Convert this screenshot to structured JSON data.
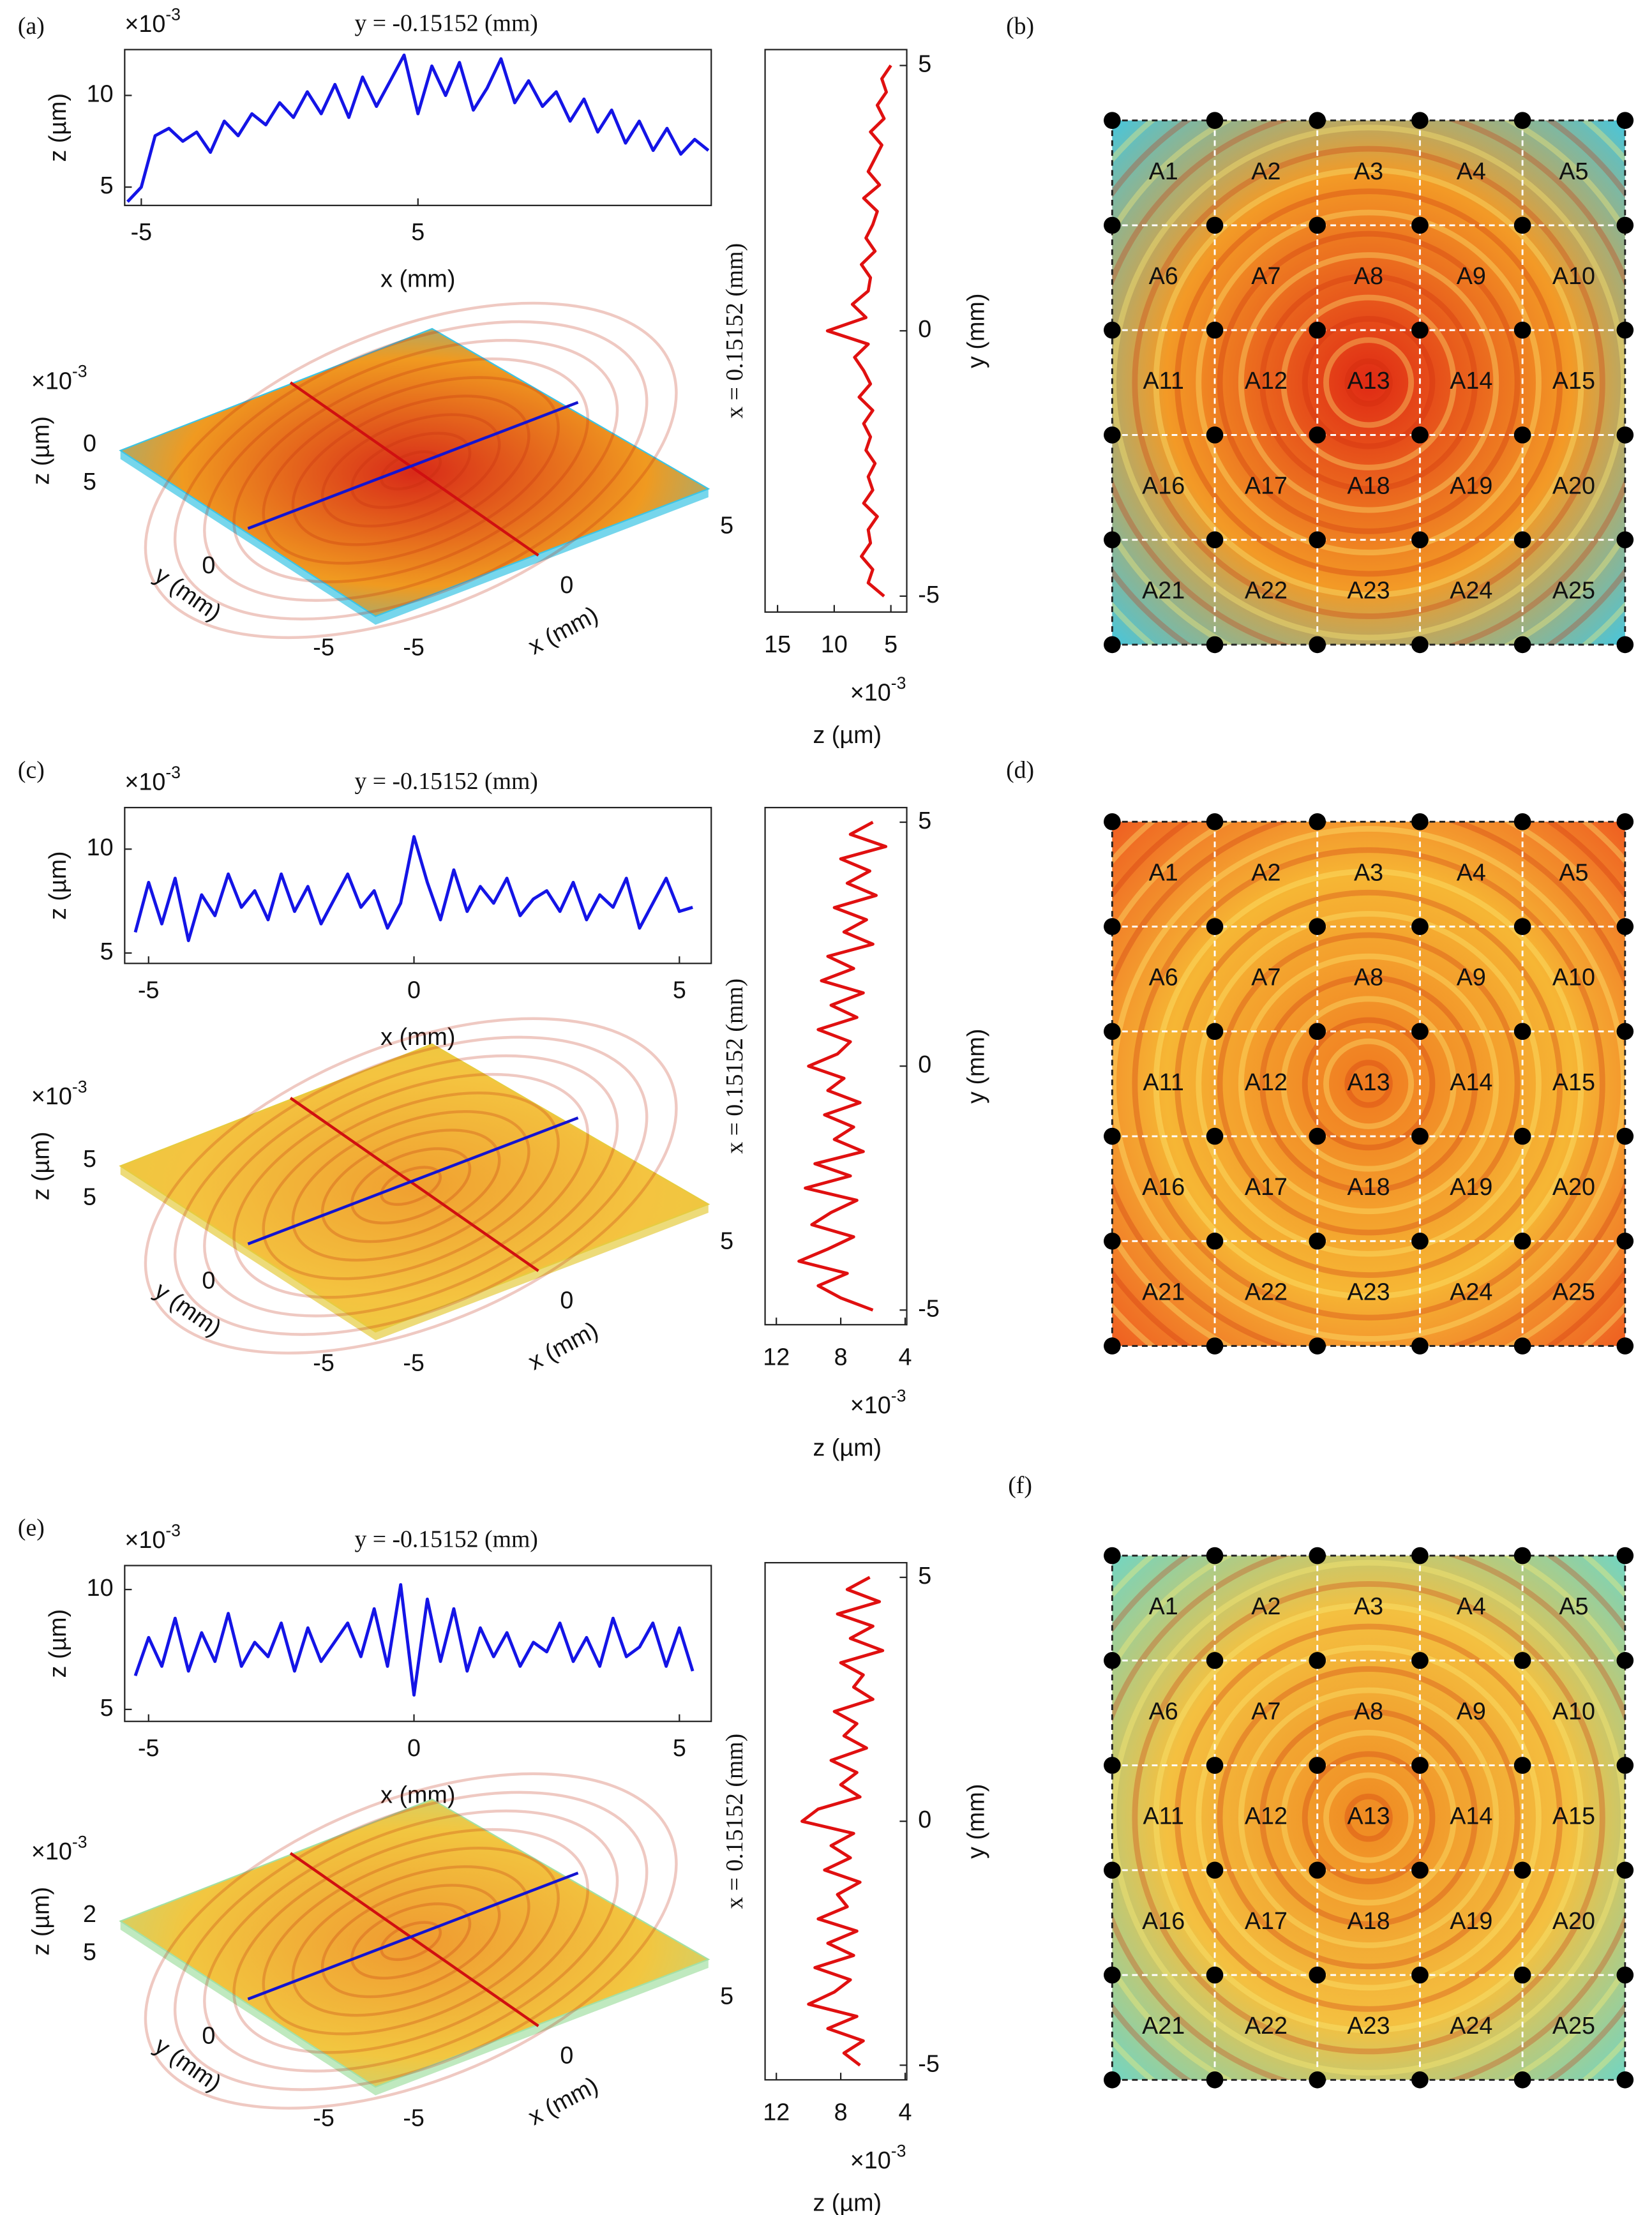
{
  "panel_labels": [
    "(a)",
    "(b)",
    "(c)",
    "(d)",
    "(e)",
    "(f)"
  ],
  "chart_data": [
    {
      "type": "line",
      "orientation": "horizontal",
      "title": "y = -0.15152 (mm)",
      "multiplier": {
        "base": "×10",
        "exponent": "-3"
      },
      "xlabel": "x (mm)",
      "ylabel": "z (µm)",
      "color": "#1414e6",
      "x": [
        -5.5,
        -5,
        -4.5,
        -4,
        -3.5,
        -3,
        -2.5,
        -2,
        -1.5,
        -1,
        -0.5,
        0,
        0.5,
        1,
        1.5,
        2,
        2.5,
        3,
        3.5,
        4,
        4.5,
        5,
        5.5,
        6,
        6.5,
        7,
        7.5,
        8,
        8.5,
        9,
        9.5,
        10,
        10.5,
        11,
        11.5,
        12,
        12.5,
        13,
        13.5,
        14,
        14.5,
        15,
        15.5
      ],
      "values": [
        4.2,
        5.0,
        7.8,
        8.2,
        7.5,
        8.0,
        6.9,
        8.6,
        7.8,
        9.0,
        8.4,
        9.6,
        8.8,
        10.2,
        9.0,
        10.6,
        8.8,
        11.0,
        9.4,
        10.8,
        12.2,
        9.0,
        11.6,
        10.0,
        11.8,
        9.2,
        10.4,
        12.0,
        9.6,
        10.8,
        9.4,
        10.2,
        8.6,
        9.8,
        8.0,
        9.2,
        7.4,
        8.6,
        7.0,
        8.2,
        6.8,
        7.6,
        7.0
      ],
      "xlim": [
        -5.6,
        15.6
      ],
      "xticks": [
        -5,
        5
      ],
      "ylim": [
        4,
        12.5
      ],
      "yticks": [
        5,
        10
      ]
    },
    {
      "type": "surface",
      "multiplier": {
        "base": "×10",
        "exponent": "-3"
      },
      "zlabel": "z (µm)",
      "ylabel": "y (mm)",
      "xlabel": "x (mm)",
      "zticks": [
        0
      ],
      "yticks": [
        5,
        0,
        -5
      ],
      "xticks": [
        -5,
        0,
        5
      ],
      "colors": [
        "#d82a18",
        "#f09a20",
        "#3cc4e4"
      ]
    },
    {
      "type": "line",
      "orientation": "vertical",
      "ylabel": "x = 0.15152 (mm)",
      "y2label": "y (mm)",
      "xlabel": "z (µm)",
      "multiplier": {
        "base": "×10",
        "exponent": "-3"
      },
      "color": "#e01010",
      "y": [
        5,
        4.75,
        4.5,
        4.25,
        4,
        3.75,
        3.5,
        3.25,
        3,
        2.75,
        2.5,
        2.25,
        2,
        1.75,
        1.5,
        1.25,
        1,
        0.75,
        0.5,
        0.25,
        0,
        -0.25,
        -0.5,
        -0.75,
        -1,
        -1.25,
        -1.5,
        -1.75,
        -2,
        -2.25,
        -2.5,
        -2.75,
        -3,
        -3.25,
        -3.5,
        -3.75,
        -4,
        -4.25,
        -4.5,
        -4.75,
        -5
      ],
      "values": [
        5.0,
        5.8,
        5.4,
        6.2,
        5.6,
        6.8,
        5.8,
        6.4,
        7.0,
        6.0,
        7.4,
        6.2,
        6.6,
        7.2,
        6.4,
        7.6,
        6.8,
        7.0,
        8.4,
        7.2,
        10.6,
        7.0,
        8.2,
        7.4,
        6.8,
        7.8,
        6.6,
        7.4,
        6.8,
        7.2,
        6.4,
        7.0,
        6.6,
        7.4,
        6.2,
        7.0,
        6.8,
        7.6,
        6.6,
        7.0,
        5.6
      ],
      "xlim": [
        3.6,
        16.1
      ],
      "x_reversed": true,
      "xticks": [
        15,
        10,
        5
      ],
      "ylim": [
        -5.3,
        5.3
      ],
      "yticks": [
        5,
        0,
        -5
      ]
    },
    {
      "type": "heatmap",
      "cells": [
        "A1",
        "A2",
        "A3",
        "A4",
        "A5",
        "A6",
        "A7",
        "A8",
        "A9",
        "A10",
        "A11",
        "A12",
        "A13",
        "A14",
        "A15",
        "A16",
        "A17",
        "A18",
        "A19",
        "A20",
        "A21",
        "A22",
        "A23",
        "A24",
        "A25"
      ],
      "colors": [
        "#e02a14",
        "#f39a26",
        "#40c8e4"
      ]
    },
    {
      "type": "line",
      "orientation": "horizontal",
      "title": "y = -0.15152 (mm)",
      "multiplier": {
        "base": "×10",
        "exponent": "-3"
      },
      "xlabel": "x (mm)",
      "ylabel": "z (µm)",
      "color": "#1414e6",
      "x": [
        -5.25,
        -5,
        -4.75,
        -4.5,
        -4.25,
        -4,
        -3.75,
        -3.5,
        -3.25,
        -3,
        -2.75,
        -2.5,
        -2.25,
        -2,
        -1.75,
        -1.5,
        -1.25,
        -1,
        -0.75,
        -0.5,
        -0.25,
        0,
        0.25,
        0.5,
        0.75,
        1,
        1.25,
        1.5,
        1.75,
        2,
        2.25,
        2.5,
        2.75,
        3,
        3.25,
        3.5,
        3.75,
        4,
        4.25,
        4.5,
        4.75,
        5,
        5.25
      ],
      "values": [
        6.0,
        8.4,
        6.4,
        8.6,
        5.6,
        7.8,
        6.8,
        8.8,
        7.2,
        8.0,
        6.6,
        8.8,
        7.0,
        8.2,
        6.4,
        7.6,
        8.8,
        7.2,
        8.0,
        6.2,
        7.4,
        10.6,
        8.4,
        6.6,
        9.0,
        7.0,
        8.2,
        7.4,
        8.6,
        6.8,
        7.6,
        8.0,
        7.0,
        8.4,
        6.6,
        7.8,
        7.2,
        8.6,
        6.2,
        7.4,
        8.6,
        7.0,
        7.2
      ],
      "xlim": [
        -5.45,
        5.6
      ],
      "xticks": [
        -5,
        0,
        5
      ],
      "ylim": [
        4.5,
        12
      ],
      "yticks": [
        5,
        10
      ]
    },
    {
      "type": "surface",
      "multiplier": {
        "base": "×10",
        "exponent": "-3"
      },
      "zlabel": "z (µm)",
      "ylabel": "y (mm)",
      "xlabel": "x (mm)",
      "zticks": [
        5
      ],
      "yticks": [
        5,
        0,
        -5
      ],
      "xticks": [
        -5,
        0,
        5
      ],
      "colors": [
        "#f0a030",
        "#f4c440",
        "#e6cc40"
      ]
    },
    {
      "type": "line",
      "orientation": "vertical",
      "ylabel": "x = 0.15152 (mm)",
      "y2label": "y (mm)",
      "xlabel": "z (µm)",
      "multiplier": {
        "base": "×10",
        "exponent": "-3"
      },
      "color": "#e01010",
      "y": [
        5,
        4.75,
        4.5,
        4.25,
        4,
        3.75,
        3.5,
        3.25,
        3,
        2.75,
        2.5,
        2.25,
        2,
        1.75,
        1.5,
        1.25,
        1,
        0.75,
        0.5,
        0.25,
        0,
        -0.25,
        -0.5,
        -0.75,
        -1,
        -1.25,
        -1.5,
        -1.75,
        -2,
        -2.25,
        -2.5,
        -2.75,
        -3,
        -3.25,
        -3.5,
        -3.75,
        -4,
        -4.25,
        -4.5,
        -4.75,
        -5
      ],
      "values": [
        6.0,
        7.4,
        5.2,
        8.0,
        6.2,
        7.6,
        5.8,
        8.4,
        6.4,
        7.8,
        6.0,
        8.8,
        7.2,
        9.2,
        6.6,
        8.6,
        7.0,
        9.4,
        7.4,
        8.2,
        10.0,
        7.8,
        8.8,
        6.8,
        9.0,
        7.2,
        8.4,
        6.6,
        9.6,
        7.4,
        10.2,
        7.0,
        8.6,
        9.8,
        7.2,
        8.8,
        10.6,
        7.6,
        9.4,
        8.0,
        6.0
      ],
      "xlim": [
        3.9,
        12.7
      ],
      "x_reversed": true,
      "xticks": [
        12,
        8,
        4
      ],
      "ylim": [
        -5.3,
        5.3
      ],
      "yticks": [
        5,
        0,
        -5
      ]
    },
    {
      "type": "heatmap",
      "cells": [
        "A1",
        "A2",
        "A3",
        "A4",
        "A5",
        "A6",
        "A7",
        "A8",
        "A9",
        "A10",
        "A11",
        "A12",
        "A13",
        "A14",
        "A15",
        "A16",
        "A17",
        "A18",
        "A19",
        "A20",
        "A21",
        "A22",
        "A23",
        "A24",
        "A25"
      ],
      "colors": [
        "#f07a20",
        "#f6b634",
        "#ee5a20"
      ]
    },
    {
      "type": "line",
      "orientation": "horizontal",
      "title": "y = -0.15152 (mm)",
      "multiplier": {
        "base": "×10",
        "exponent": "-3"
      },
      "xlabel": "x (mm)",
      "ylabel": "z (µm)",
      "color": "#1414e6",
      "x": [
        -5.25,
        -5,
        -4.75,
        -4.5,
        -4.25,
        -4,
        -3.75,
        -3.5,
        -3.25,
        -3,
        -2.75,
        -2.5,
        -2.25,
        -2,
        -1.75,
        -1.5,
        -1.25,
        -1,
        -0.75,
        -0.5,
        -0.25,
        0,
        0.25,
        0.5,
        0.75,
        1,
        1.25,
        1.5,
        1.75,
        2,
        2.25,
        2.5,
        2.75,
        3,
        3.25,
        3.5,
        3.75,
        4,
        4.25,
        4.5,
        4.75,
        5,
        5.25
      ],
      "values": [
        6.4,
        8.0,
        6.8,
        8.8,
        6.6,
        8.2,
        7.0,
        9.0,
        6.8,
        7.8,
        7.2,
        8.6,
        6.6,
        8.4,
        7.0,
        7.8,
        8.6,
        7.2,
        9.2,
        6.8,
        10.2,
        5.6,
        9.6,
        7.0,
        9.2,
        6.6,
        8.4,
        7.2,
        8.2,
        6.8,
        7.8,
        7.4,
        8.6,
        7.0,
        8.0,
        6.8,
        8.8,
        7.2,
        7.6,
        8.6,
        6.8,
        8.4,
        6.6
      ],
      "xlim": [
        -5.45,
        5.6
      ],
      "xticks": [
        -5,
        0,
        5
      ],
      "ylim": [
        4.5,
        11
      ],
      "yticks": [
        5,
        10
      ]
    },
    {
      "type": "surface",
      "multiplier": {
        "base": "×10",
        "exponent": "-3"
      },
      "zlabel": "z (µm)",
      "ylabel": "y (mm)",
      "xlabel": "x (mm)",
      "zticks": [
        2
      ],
      "yticks": [
        5,
        0,
        -5
      ],
      "xticks": [
        -5,
        0,
        5
      ],
      "colors": [
        "#f09a30",
        "#f2c640",
        "#a4e0a4"
      ]
    },
    {
      "type": "line",
      "orientation": "vertical",
      "ylabel": "x = 0.15152 (mm)",
      "y2label": "y (mm)",
      "xlabel": "z (µm)",
      "multiplier": {
        "base": "×10",
        "exponent": "-3"
      },
      "color": "#e01010",
      "y": [
        5,
        4.75,
        4.5,
        4.25,
        4,
        3.75,
        3.5,
        3.25,
        3,
        2.75,
        2.5,
        2.25,
        2,
        1.75,
        1.5,
        1.25,
        1,
        0.75,
        0.5,
        0.25,
        0,
        -0.25,
        -0.5,
        -0.75,
        -1,
        -1.25,
        -1.5,
        -1.75,
        -2,
        -2.25,
        -2.5,
        -2.75,
        -3,
        -3.25,
        -3.5,
        -3.75,
        -4,
        -4.25,
        -4.5,
        -4.75,
        -5
      ],
      "values": [
        6.2,
        7.6,
        5.6,
        8.2,
        6.0,
        7.4,
        5.4,
        8.0,
        6.6,
        7.2,
        6.0,
        8.4,
        7.0,
        7.8,
        6.4,
        8.6,
        7.0,
        8.0,
        6.8,
        9.4,
        10.4,
        7.2,
        8.6,
        7.4,
        9.0,
        6.8,
        8.2,
        7.6,
        9.4,
        7.0,
        8.8,
        7.2,
        9.6,
        7.4,
        8.4,
        10.0,
        7.0,
        8.8,
        6.6,
        7.8,
        6.8
      ],
      "xlim": [
        3.9,
        12.7
      ],
      "x_reversed": true,
      "xticks": [
        12,
        8,
        4
      ],
      "ylim": [
        -5.3,
        5.3
      ],
      "yticks": [
        5,
        0,
        -5
      ]
    },
    {
      "type": "heatmap",
      "cells": [
        "A1",
        "A2",
        "A3",
        "A4",
        "A5",
        "A6",
        "A7",
        "A8",
        "A9",
        "A10",
        "A11",
        "A12",
        "A13",
        "A14",
        "A15",
        "A16",
        "A17",
        "A18",
        "A19",
        "A20",
        "A21",
        "A22",
        "A23",
        "A24",
        "A25"
      ],
      "colors": [
        "#f08a22",
        "#f4c040",
        "#6cd6c8"
      ]
    }
  ]
}
